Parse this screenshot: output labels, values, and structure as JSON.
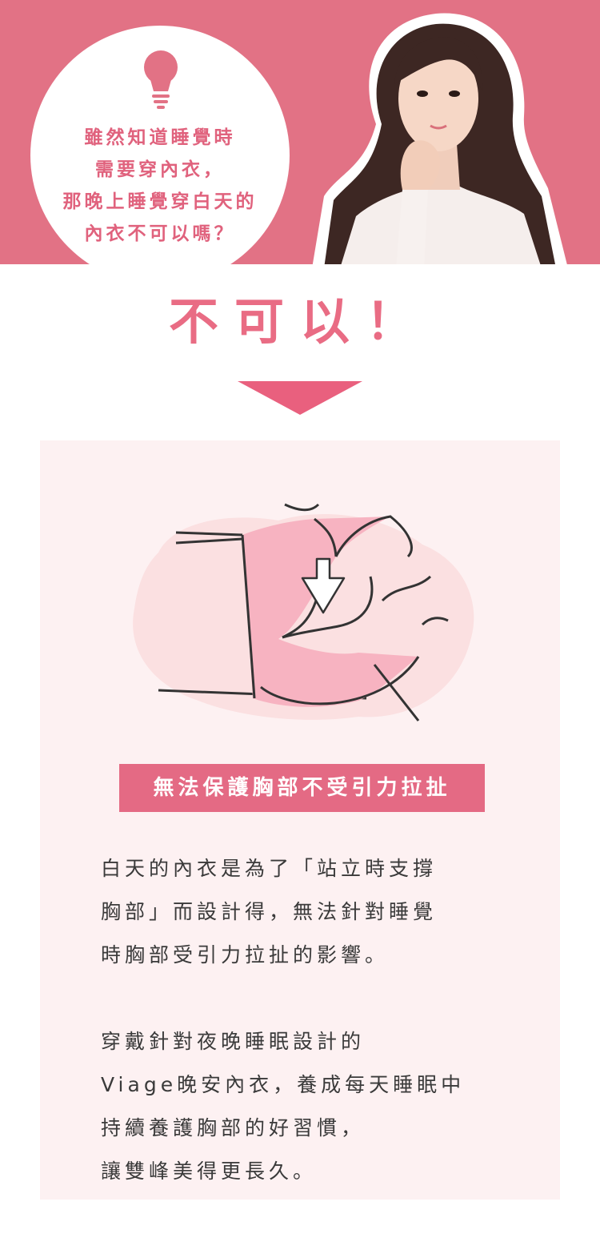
{
  "question": {
    "lines": [
      "雖然知道睡覺時",
      "需要穿內衣，",
      "那晚上睡覺穿白天的",
      "內衣不可以嗎？"
    ]
  },
  "answer": {
    "text": "不可以！"
  },
  "tagline": {
    "text": "無法保護胸部不受引力拉扯"
  },
  "paragraph1": [
    "白天的內衣是為了「站立時支撐",
    "胸部」而設計得，無法針對睡覺",
    "時胸部受引力拉扯的影響。"
  ],
  "paragraph2": [
    "穿戴針對夜晚睡眠設計的",
    "Viage晚安內衣，養成每天睡眠中",
    "持續養護胸部的好習慣，",
    "讓雙峰美得更長久。"
  ],
  "colors": {
    "banner": "#e27285",
    "accent": "#e96c84",
    "card": "#fdf1f2",
    "tag": "#e46a84",
    "text": "#3a3a3a"
  },
  "icons": [
    "lightbulb-icon",
    "down-arrow-icon",
    "gravity-arrow-icon"
  ]
}
